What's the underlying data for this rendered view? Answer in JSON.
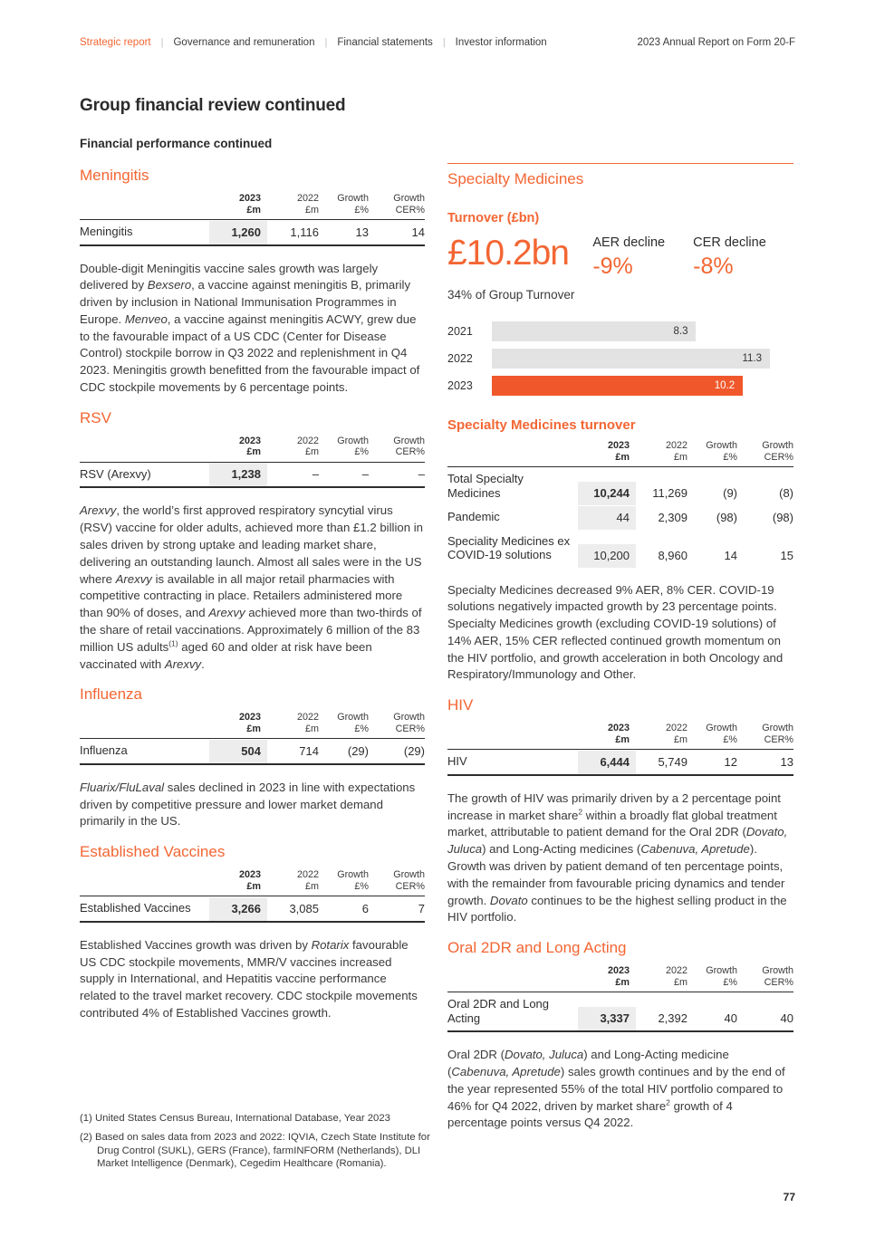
{
  "accent_color": "#F36633",
  "chart_bar_orange": "#F0582B",
  "chart_bar_gray": "#E3E3E3",
  "shade_color": "#EDEDED",
  "header": {
    "separator": "|",
    "nav": [
      {
        "label": "Strategic report",
        "active": true
      },
      {
        "label": "Governance and remuneration",
        "active": false
      },
      {
        "label": "Financial statements",
        "active": false
      },
      {
        "label": "Investor information",
        "active": false
      }
    ],
    "report_title": "2023 Annual Report on Form 20-F"
  },
  "page_title": "Group financial review continued",
  "page_subtitle": "Financial performance continued",
  "table_headers": [
    [
      "2023",
      "£m"
    ],
    [
      "2022",
      "£m"
    ],
    [
      "Growth",
      "£%"
    ],
    [
      "Growth",
      "CER%"
    ]
  ],
  "left_column": {
    "meningitis": {
      "heading": "Meningitis",
      "table": {
        "bottom_border": true,
        "rows": [
          {
            "label": "Meningitis",
            "bold2023": true,
            "values": [
              "1,260",
              "1,116",
              "13",
              "14"
            ]
          }
        ]
      },
      "paragraph": [
        {
          "t": "Double-digit Meningitis vaccine sales growth was largely delivered by "
        },
        {
          "t": "Bexsero",
          "i": true
        },
        {
          "t": ", a vaccine against meningitis B, primarily driven by inclusion in National Immunisation Programmes in Europe. "
        },
        {
          "t": "Menveo",
          "i": true
        },
        {
          "t": ", a vaccine against meningitis ACWY, grew due to the favourable impact of a US CDC (Center for Disease Control) stockpile borrow in Q3 2022 and replenishment in Q4 2023. Meningitis growth benefitted from the favourable impact of CDC stockpile movements by 6 percentage points."
        }
      ]
    },
    "rsv": {
      "heading": "RSV",
      "table": {
        "bottom_border": true,
        "rows": [
          {
            "label": "RSV (Arexvy)",
            "bold2023": true,
            "values": [
              "1,238",
              "–",
              "–",
              "–"
            ]
          }
        ]
      },
      "paragraph": [
        {
          "t": "Arexvy",
          "i": true
        },
        {
          "t": ", the world’s first approved respiratory syncytial virus (RSV) vaccine for older adults, achieved more than £1.2 billion in sales driven by strong uptake and leading market share, delivering an outstanding launch. Almost all sales were in the US where "
        },
        {
          "t": "Arexvy",
          "i": true
        },
        {
          "t": " is available in all major retail pharmacies with competitive contracting in place. Retailers administered more than 90% of doses, and "
        },
        {
          "t": "Arexvy",
          "i": true
        },
        {
          "t": " achieved more than two-thirds of the share of retail vaccinations. Approximately 6 million of the 83 million US adults"
        },
        {
          "t": "(1)",
          "sup": true
        },
        {
          "t": " aged 60 and older at risk have been vaccinated with "
        },
        {
          "t": "Arexvy",
          "i": true
        },
        {
          "t": "."
        }
      ]
    },
    "influenza": {
      "heading": "Influenza",
      "table": {
        "bottom_border": true,
        "rows": [
          {
            "label": "Influenza",
            "bold2023": true,
            "values": [
              "504",
              "714",
              "(29)",
              "(29)"
            ]
          }
        ]
      },
      "paragraph": [
        {
          "t": "Fluarix/FluLaval",
          "i": true
        },
        {
          "t": " sales declined in 2023 in line with expectations driven by competitive pressure and lower market demand primarily in the US."
        }
      ]
    },
    "established_vaccines": {
      "heading": "Established Vaccines",
      "table": {
        "bottom_border": true,
        "rows": [
          {
            "label": "Established Vaccines",
            "bold2023": true,
            "values": [
              "3,266",
              "3,085",
              "6",
              "7"
            ]
          }
        ]
      },
      "paragraph": [
        {
          "t": "Established Vaccines growth was driven by "
        },
        {
          "t": "Rotarix",
          "i": true
        },
        {
          "t": " favourable US CDC stockpile movements, MMR/V vaccines increased supply in International, and Hepatitis vaccine performance related to the travel market recovery. CDC stockpile movements contributed 4% of Established Vaccines growth."
        }
      ]
    }
  },
  "right_column": {
    "heading": "Specialty Medicines",
    "turnover": {
      "label": "Turnover (£bn)",
      "value": "£10.2bn",
      "aer": {
        "label": "AER decline",
        "value": "-9%"
      },
      "cer": {
        "label": "CER decline",
        "value": "-8%"
      },
      "share": "34% of Group Turnover"
    },
    "turnover_table_heading": "Specialty Medicines turnover",
    "turnover_table": {
      "bottom_border": false,
      "rows": [
        {
          "label": "Total Specialty Medicines",
          "bold2023": true,
          "values": [
            "10,244",
            "11,269",
            "(9)",
            "(8)"
          ]
        },
        {
          "label": "Pandemic",
          "bold2023": false,
          "values": [
            "44",
            "2,309",
            "(98)",
            "(98)"
          ]
        },
        {
          "label": "Speciality Medicines ex COVID-19 solutions",
          "bold2023": false,
          "values": [
            "10,200",
            "8,960",
            "14",
            "15"
          ]
        }
      ]
    },
    "specialty_paragraph": [
      {
        "t": "Specialty Medicines decreased 9% AER, 8% CER. COVID-19 solutions negatively impacted growth by 23 percentage points. Specialty Medicines growth (excluding COVID-19 solutions) of 14% AER, 15% CER reflected continued growth momentum on the HIV portfolio, and growth acceleration in both Oncology and Respiratory/Immunology and Other."
      }
    ],
    "hiv": {
      "heading": "HIV",
      "table": {
        "bottom_border": true,
        "rows": [
          {
            "label": "HIV",
            "bold2023": true,
            "values": [
              "6,444",
              "5,749",
              "12",
              "13"
            ]
          }
        ]
      },
      "paragraph": [
        {
          "t": "The growth of HIV was primarily driven by a 2 percentage point increase in market share"
        },
        {
          "t": "2",
          "sup": true
        },
        {
          "t": " within a broadly flat global treatment market, attributable to patient demand for the Oral 2DR ("
        },
        {
          "t": "Dovato, Juluca",
          "i": true
        },
        {
          "t": ") and Long-Acting medicines ("
        },
        {
          "t": "Cabenuva, Apretude",
          "i": true
        },
        {
          "t": "). Growth was driven by patient demand of ten percentage points, with the remainder from favourable pricing dynamics and tender growth. "
        },
        {
          "t": "Dovato",
          "i": true
        },
        {
          "t": " continues to be the highest selling product in the HIV portfolio."
        }
      ]
    },
    "oral_2dr": {
      "heading": "Oral 2DR and Long Acting",
      "table": {
        "bottom_border": true,
        "rows": [
          {
            "label": "Oral 2DR and Long Acting",
            "bold2023": true,
            "values": [
              "3,337",
              "2,392",
              "40",
              "40"
            ]
          }
        ]
      },
      "paragraph": [
        {
          "t": "Oral 2DR ("
        },
        {
          "t": "Dovato, Juluca",
          "i": true
        },
        {
          "t": ") and Long-Acting medicine ("
        },
        {
          "t": "Cabenuva, Apretude",
          "i": true
        },
        {
          "t": ") sales growth continues and by the end of the year represented 55% of the total HIV portfolio compared to 46% for Q4 2022, driven by market share"
        },
        {
          "t": "2",
          "sup": true
        },
        {
          "t": " growth of 4 percentage points versus Q4 2022."
        }
      ]
    }
  },
  "chart_data": {
    "type": "bar",
    "orientation": "horizontal",
    "title": "Specialty Medicines Turnover (£bn)",
    "categories": [
      "2021",
      "2022",
      "2023"
    ],
    "values": [
      8.3,
      11.3,
      10.2
    ],
    "value_labels": [
      "8.3",
      "11.3",
      "10.2"
    ],
    "xlim": [
      0,
      11.3
    ],
    "grid": false,
    "legend": "none",
    "bar_colors": [
      "#E3E3E3",
      "#E3E3E3",
      "#F0582B"
    ],
    "value_label_colors": [
      "#333333",
      "#333333",
      "#ffffff"
    ]
  },
  "footnotes": [
    {
      "marker": "(1)",
      "text": "United States Census Bureau, International Database, Year 2023"
    },
    {
      "marker": "(2)",
      "text": "Based on sales data from 2023 and 2022: IQVIA, Czech State Institute for Drug Control (SUKL), GERS (France), farmINFORM (Netherlands), DLI Market Intelligence (Denmark), Cegedim Healthcare (Romania)."
    }
  ],
  "page_number": "77"
}
